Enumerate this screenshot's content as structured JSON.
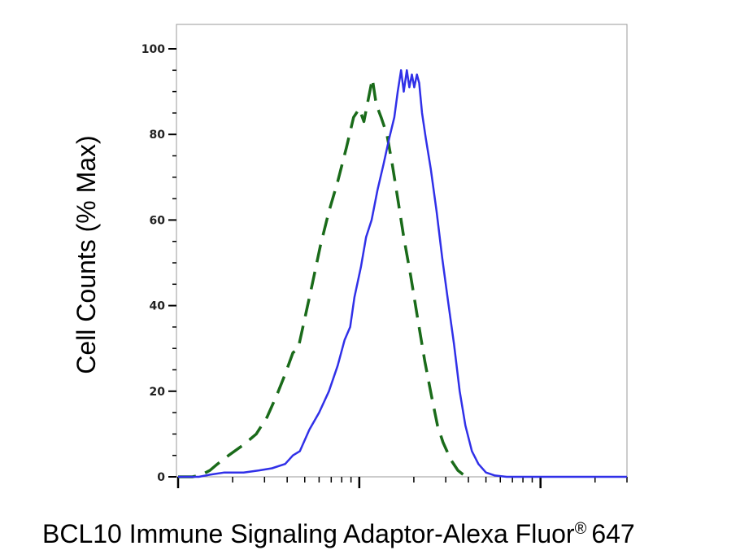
{
  "chart_data": {
    "type": "line",
    "title": "",
    "xlabel": {
      "main": "BCL10 Immune Signaling Adaptor-Alexa Fluor",
      "symbol": "®",
      "suffix": "647"
    },
    "ylabel": "Cell Counts (% Max)",
    "xscale": "log",
    "xlim": [
      1,
      300
    ],
    "ylim": [
      0,
      100
    ],
    "yticks": [
      0,
      20,
      40,
      60,
      80,
      100
    ],
    "grid": false,
    "series": [
      {
        "style": "dashed",
        "color": "#1a6b1a",
        "points": [
          [
            1.0,
            0
          ],
          [
            1.2,
            0
          ],
          [
            1.35,
            0.5
          ],
          [
            1.5,
            1.5
          ],
          [
            1.65,
            3
          ],
          [
            1.9,
            5
          ],
          [
            2.3,
            7.5
          ],
          [
            2.7,
            10
          ],
          [
            3.1,
            14
          ],
          [
            3.5,
            19
          ],
          [
            3.9,
            24
          ],
          [
            4.3,
            29
          ],
          [
            4.6,
            30
          ],
          [
            5.0,
            37
          ],
          [
            5.5,
            45
          ],
          [
            6.1,
            54
          ],
          [
            6.8,
            62
          ],
          [
            7.6,
            69
          ],
          [
            8.5,
            77
          ],
          [
            9.3,
            84
          ],
          [
            10.0,
            86
          ],
          [
            10.6,
            83
          ],
          [
            11.3,
            89
          ],
          [
            11.8,
            93
          ],
          [
            12.4,
            87
          ],
          [
            13.2,
            84
          ],
          [
            14.2,
            80
          ],
          [
            15.2,
            73
          ],
          [
            16.3,
            65
          ],
          [
            17.6,
            56
          ],
          [
            19.2,
            47
          ],
          [
            21.0,
            37
          ],
          [
            23.0,
            27
          ],
          [
            25.0,
            19
          ],
          [
            27.0,
            12
          ],
          [
            29.0,
            8
          ],
          [
            32.0,
            4
          ],
          [
            35.0,
            1.5
          ],
          [
            38.0,
            0.3
          ],
          [
            42.0,
            0
          ]
        ]
      },
      {
        "style": "solid",
        "color": "#3030e8",
        "points": [
          [
            1.0,
            0
          ],
          [
            1.3,
            0
          ],
          [
            1.5,
            0.5
          ],
          [
            1.8,
            1
          ],
          [
            2.3,
            1
          ],
          [
            2.8,
            1.5
          ],
          [
            3.3,
            2
          ],
          [
            3.9,
            3
          ],
          [
            4.3,
            5
          ],
          [
            4.7,
            6
          ],
          [
            5.3,
            11
          ],
          [
            6.0,
            15
          ],
          [
            6.8,
            20
          ],
          [
            7.6,
            26
          ],
          [
            8.3,
            32
          ],
          [
            8.9,
            35
          ],
          [
            9.4,
            42
          ],
          [
            10.2,
            49
          ],
          [
            10.9,
            56
          ],
          [
            11.7,
            60
          ],
          [
            12.6,
            67
          ],
          [
            13.6,
            73
          ],
          [
            14.6,
            79
          ],
          [
            15.6,
            84
          ],
          [
            16.3,
            90
          ],
          [
            17.0,
            95
          ],
          [
            17.6,
            90
          ],
          [
            18.3,
            95
          ],
          [
            18.9,
            91
          ],
          [
            19.5,
            94
          ],
          [
            20.1,
            91
          ],
          [
            20.8,
            94
          ],
          [
            21.4,
            92
          ],
          [
            22.2,
            85
          ],
          [
            23.3,
            79
          ],
          [
            24.8,
            72
          ],
          [
            26.7,
            62
          ],
          [
            28.7,
            51
          ],
          [
            30.9,
            41
          ],
          [
            33.3,
            31
          ],
          [
            35.8,
            20
          ],
          [
            38.5,
            12
          ],
          [
            41.8,
            6
          ],
          [
            45.4,
            3
          ],
          [
            50.0,
            1
          ],
          [
            56.0,
            0.3
          ],
          [
            65.0,
            0
          ],
          [
            120.0,
            0
          ],
          [
            300.0,
            0
          ]
        ]
      }
    ]
  }
}
